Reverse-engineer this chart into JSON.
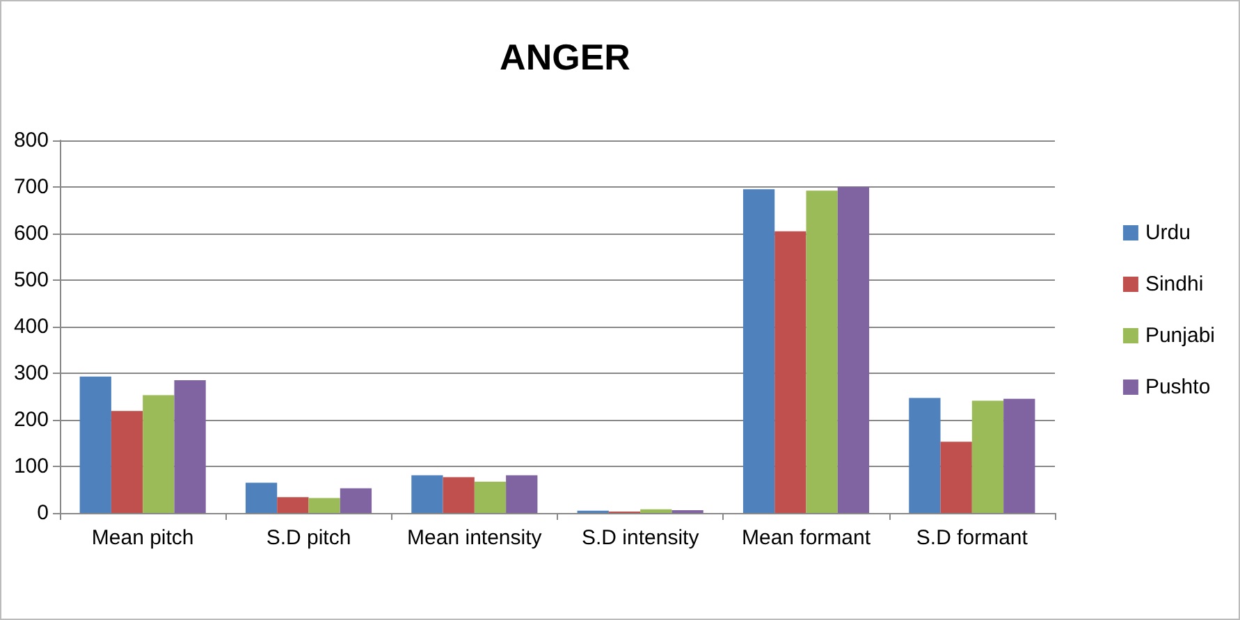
{
  "chart_data": {
    "type": "bar",
    "title": "ANGER",
    "categories": [
      "Mean pitch",
      "S.D pitch",
      "Mean intensity",
      "S.D intensity",
      "Mean formant",
      "S.D formant"
    ],
    "series": [
      {
        "name": "Urdu",
        "color": "#4f81bd",
        "values": [
          293,
          65,
          81,
          5,
          695,
          247
        ]
      },
      {
        "name": "Sindhi",
        "color": "#c0504d",
        "values": [
          219,
          34,
          77,
          3,
          605,
          153
        ]
      },
      {
        "name": "Punjabi",
        "color": "#9bbb59",
        "values": [
          253,
          32,
          67,
          8,
          692,
          241
        ]
      },
      {
        "name": "Pushto",
        "color": "#8064a2",
        "values": [
          285,
          53,
          81,
          6,
          700,
          245
        ]
      }
    ],
    "ylim": [
      0,
      800
    ],
    "yticks": [
      0,
      100,
      200,
      300,
      400,
      500,
      600,
      700,
      800
    ],
    "grid": "y",
    "legend": "right"
  }
}
